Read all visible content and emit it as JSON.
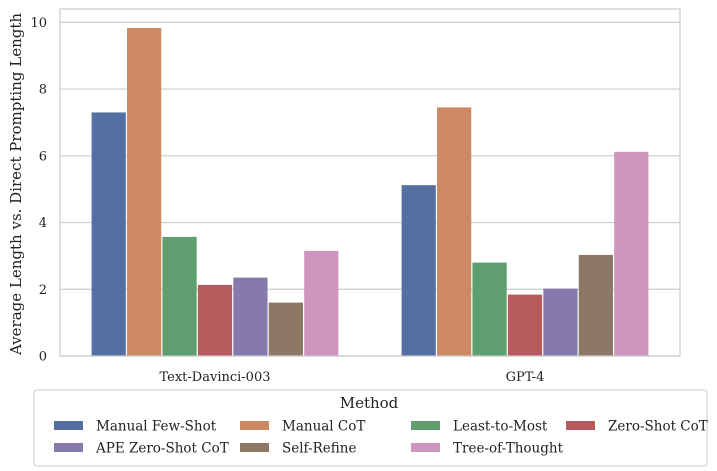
{
  "chart_data": {
    "type": "bar",
    "categories": [
      "Text-Davinci-003",
      "GPT-4"
    ],
    "ylabel": "Average Length vs. Direct Prompting Length",
    "xlabel": "",
    "ylim": [
      0,
      10.4
    ],
    "yticks": [
      0,
      2,
      4,
      6,
      8,
      10
    ],
    "grid": "horizontal",
    "legend_title": "Method",
    "legend_position": "bottom",
    "series": [
      {
        "name": "Manual Few-Shot",
        "color": "#5470a3",
        "values": [
          7.3,
          5.12
        ]
      },
      {
        "name": "Manual CoT",
        "color": "#cc8963",
        "values": [
          9.83,
          7.45
        ]
      },
      {
        "name": "Least-to-Most",
        "color": "#5f9e6e",
        "values": [
          3.57,
          2.8
        ]
      },
      {
        "name": "Zero-Shot CoT",
        "color": "#b75a5e",
        "values": [
          2.13,
          1.84
        ]
      },
      {
        "name": "APE Zero-Shot CoT",
        "color": "#857aab",
        "values": [
          2.35,
          2.02
        ]
      },
      {
        "name": "Self-Refine",
        "color": "#8d7866",
        "values": [
          1.6,
          3.03
        ]
      },
      {
        "name": "Tree-of-Thought",
        "color": "#d095bf",
        "values": [
          3.15,
          6.12
        ]
      }
    ]
  }
}
